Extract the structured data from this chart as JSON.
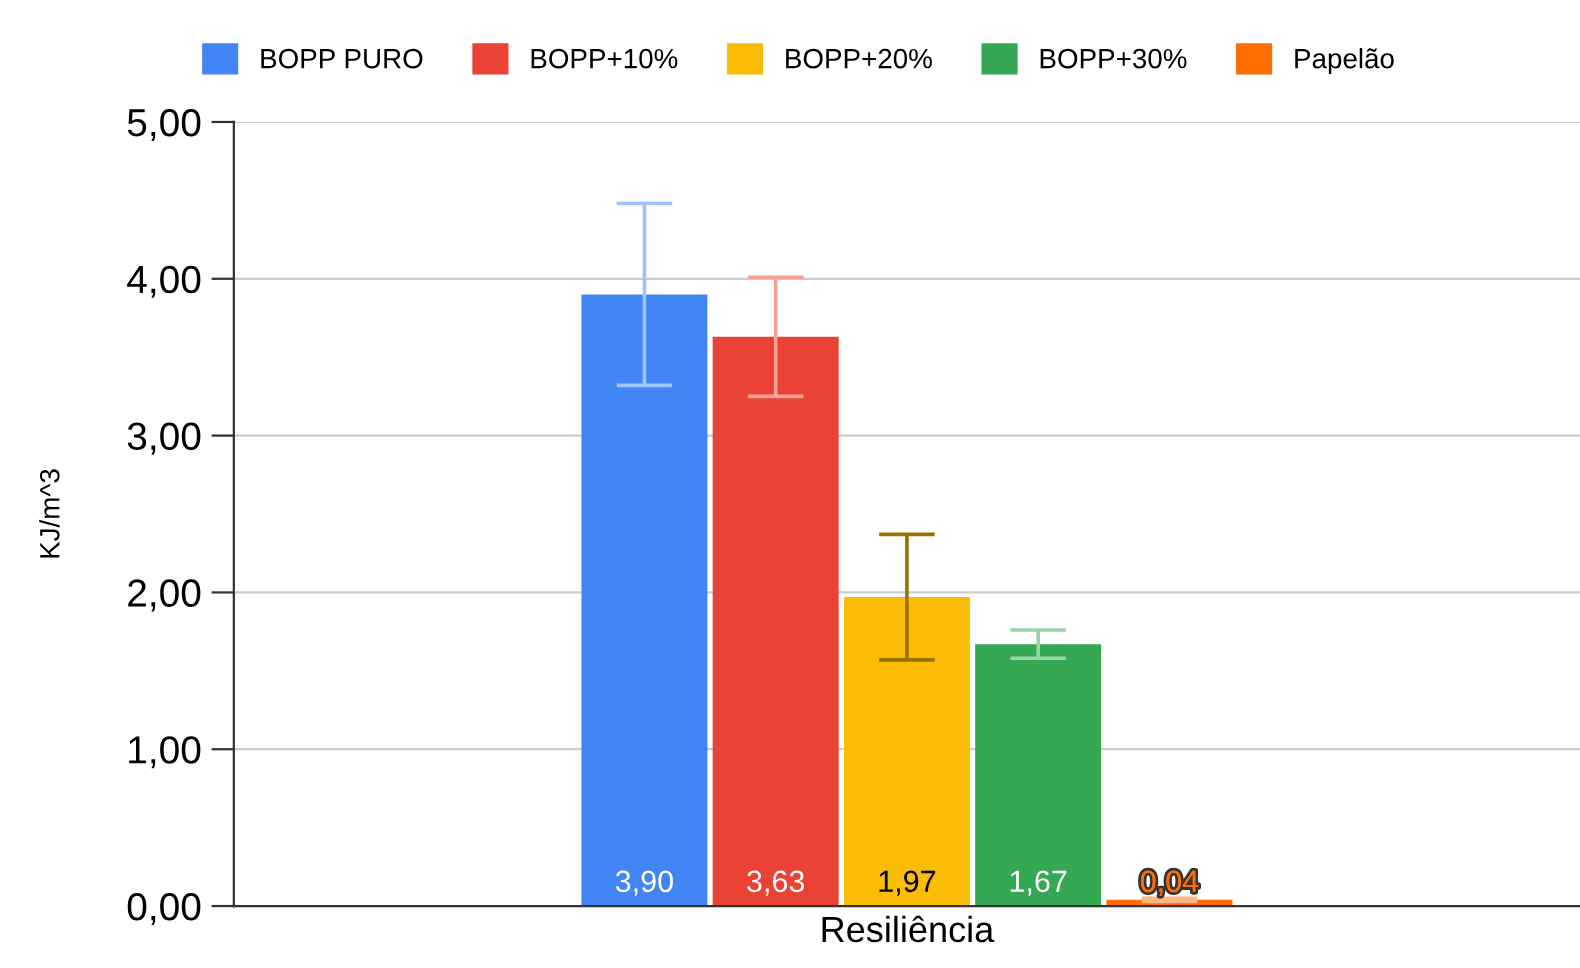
{
  "chart_data": {
    "type": "bar",
    "categories": [
      "Resiliência"
    ],
    "ylabel": "KJ/m^3",
    "ylim": [
      0,
      5
    ],
    "yticks": [
      {
        "value": 0,
        "label": "0,00"
      },
      {
        "value": 1,
        "label": "1,00"
      },
      {
        "value": 2,
        "label": "2,00"
      },
      {
        "value": 3,
        "label": "3,00"
      },
      {
        "value": 4,
        "label": "4,00"
      },
      {
        "value": 5,
        "label": "5,00"
      }
    ],
    "grid": "y",
    "legend": "top",
    "series": [
      {
        "name": "BOPP PURO",
        "color": "#4285f4",
        "values": [
          3.9
        ],
        "errors": [
          0.58
        ],
        "value_labels": [
          "3,90"
        ]
      },
      {
        "name": "BOPP+10%",
        "color": "#ea4335",
        "values": [
          3.63
        ],
        "errors": [
          0.38
        ],
        "value_labels": [
          "3,63"
        ]
      },
      {
        "name": "BOPP+20%",
        "color": "#fbbc04",
        "values": [
          1.97
        ],
        "errors": [
          0.4
        ],
        "value_labels": [
          "1,97"
        ]
      },
      {
        "name": "BOPP+30%",
        "color": "#34a853",
        "values": [
          1.67
        ],
        "errors": [
          0.09
        ],
        "value_labels": [
          "1,67"
        ]
      },
      {
        "name": "Papelão",
        "color": "#ff6d01",
        "values": [
          0.04
        ],
        "errors": [
          0.01
        ],
        "value_labels": [
          "0,04"
        ]
      }
    ]
  }
}
